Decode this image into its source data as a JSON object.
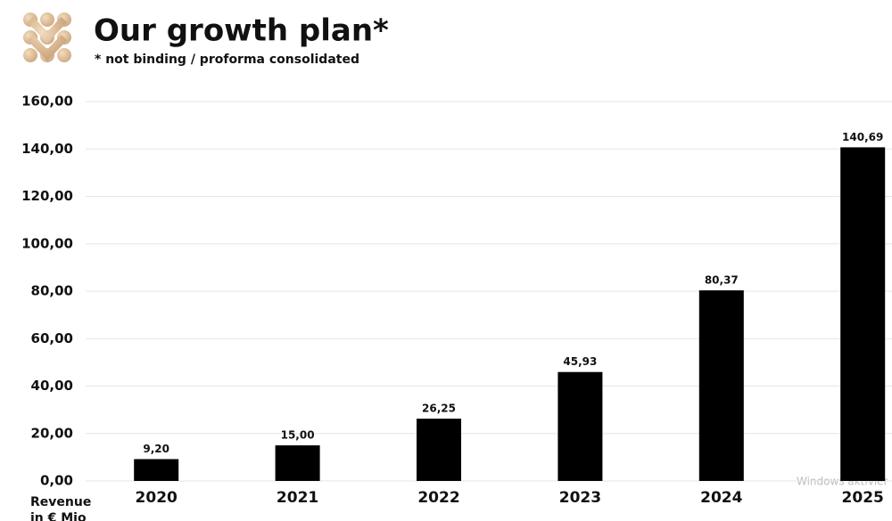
{
  "chart_data": {
    "type": "bar",
    "title": "Our growth plan*",
    "subtitle": "* not binding / proforma consolidated",
    "ylabel": [
      "Revenue",
      "in € Mio"
    ],
    "categories": [
      "2020",
      "2021",
      "2022",
      "2023",
      "2024",
      "2025"
    ],
    "values": [
      9.2,
      15,
      26.25,
      45.93,
      80.37,
      140.69
    ],
    "value_labels": [
      "9,20",
      "15,00",
      "26,25",
      "45,93",
      "80,37",
      "140,69"
    ],
    "color": "#000000",
    "ylim": [
      0,
      160
    ],
    "yticks": [
      {
        "value": 0,
        "label": "0,00"
      },
      {
        "value": 20,
        "label": "20,00"
      },
      {
        "value": 40,
        "label": "40,00"
      },
      {
        "value": 60,
        "label": "60,00"
      },
      {
        "value": 80,
        "label": "80,00"
      },
      {
        "value": 100,
        "label": "100,00"
      },
      {
        "value": 120,
        "label": "120,00"
      },
      {
        "value": 140,
        "label": "140,00"
      },
      {
        "value": 160,
        "label": "160,00"
      }
    ],
    "grid": true,
    "watermark": "Windows aktivier"
  }
}
